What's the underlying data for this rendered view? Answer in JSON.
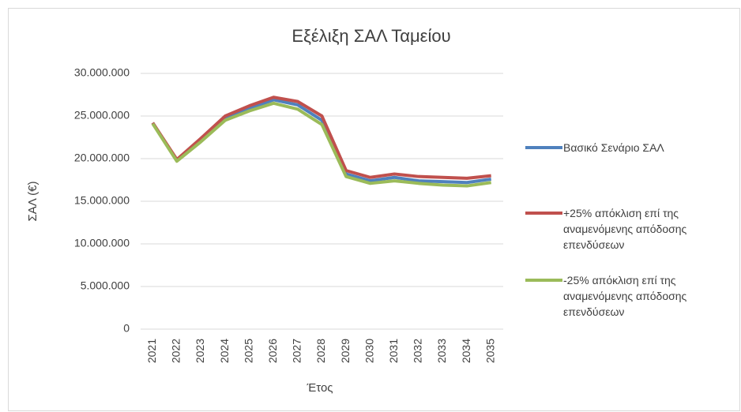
{
  "chart_data": {
    "type": "line",
    "title": "Εξέλιξη ΣΑΛ Ταμείου",
    "x_label": "Έτος",
    "y_label": "ΣΑΛ (€)",
    "categories": [
      "2021",
      "2022",
      "2023",
      "2024",
      "2025",
      "2026",
      "2027",
      "2028",
      "2029",
      "2030",
      "2031",
      "2032",
      "2033",
      "2034",
      "2035"
    ],
    "series": [
      {
        "name": "Βασικό Σενάριο ΣΑΛ",
        "color": "#4f81bd",
        "values": [
          24200000,
          19800000,
          22200000,
          24800000,
          25900000,
          26900000,
          26300000,
          24500000,
          18200000,
          17400000,
          17800000,
          17400000,
          17300000,
          17200000,
          17600000
        ]
      },
      {
        "name": "+25%  απόκλιση επί της αναμενόμενης απόδοσης επενδύσεων",
        "color": "#c0504d",
        "values": [
          24200000,
          19900000,
          22400000,
          25000000,
          26200000,
          27200000,
          26700000,
          25000000,
          18600000,
          17800000,
          18200000,
          17900000,
          17800000,
          17700000,
          18000000
        ]
      },
      {
        "name": "-25% απόκλιση επί της αναμενόμενης απόδοσης επενδύσεων",
        "color": "#9bbb59",
        "values": [
          24100000,
          19700000,
          22000000,
          24500000,
          25600000,
          26500000,
          25800000,
          24000000,
          17900000,
          17100000,
          17400000,
          17100000,
          16900000,
          16800000,
          17200000
        ]
      }
    ],
    "ylim": [
      0,
      30000000
    ],
    "yticks": [
      0,
      {
        "value": 5000000,
        "label": "5.000.000"
      },
      {
        "value": 10000000,
        "label": "10.000.000"
      },
      {
        "value": 15000000,
        "label": "15.000.000"
      },
      {
        "value": 20000000,
        "label": "20.000.000"
      },
      {
        "value": 25000000,
        "label": "25.000.000"
      },
      {
        "value": 30000000,
        "label": "30.000.000"
      }
    ],
    "grid": true,
    "legend": "right"
  }
}
